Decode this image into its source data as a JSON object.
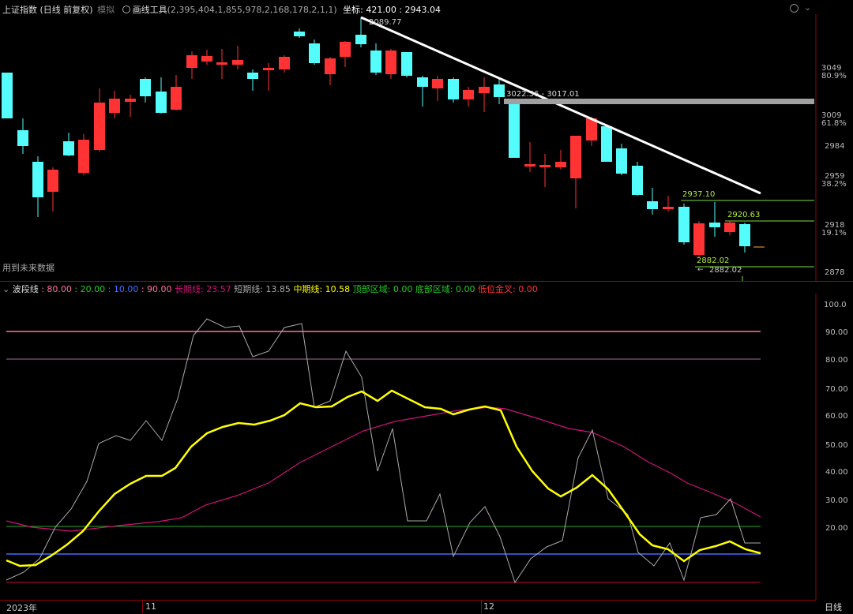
{
  "price_header": {
    "index_name": "上证指数",
    "mode": "(日线 前复权)",
    "sim": "模拟",
    "tool_label": "画线工具",
    "tool_params": "(2,395,404,1,855,978,2,168,178,2,1,1)",
    "coord_label": "坐标:",
    "coord_value": "421.00 : 2943.04"
  },
  "price_axis": {
    "ticks": [
      "3049",
      "80.9%",
      "3009",
      "61.8%",
      "2984",
      "2959",
      "38.2%",
      "2918",
      "19.1%",
      "2878"
    ]
  },
  "price_annotations": {
    "high": "2089.77",
    "zone": "3022.36 - 3017.01",
    "level1": "2937.10",
    "level2": "2920.63",
    "level3": "2882.02",
    "level3_arrow": "2882.02"
  },
  "future_note": "用到未来数据",
  "indicator_header": {
    "name": "波段线",
    "v80": ": 80.00",
    "v20": ": 20.00",
    "v10": ": 10.00",
    "v90": ": 90.00",
    "long_label": "长期线",
    "long_val": ": 23.57",
    "short_label": "短期线",
    "short_val": ": 13.85",
    "mid_label": "中期线",
    "mid_val": ": 10.58",
    "top_label": "顶部区域",
    "top_val": ": 0.00",
    "bottom_label": "底部区域",
    "bottom_val": ": 0.00",
    "cross_label": "低位金叉",
    "cross_val": ": 0.00"
  },
  "indicator_axis": {
    "ticks": [
      "100.0",
      "90.00",
      "80.00",
      "70.00",
      "60.00",
      "50.00",
      "40.00",
      "30.00",
      "20.00"
    ]
  },
  "date_axis": {
    "start": "2023年",
    "m11": "11",
    "m12": "12"
  },
  "period_label": "日线",
  "colors": {
    "up": "#ff3333",
    "down": "#54fcfc",
    "mid": "#ffff00",
    "long": "#d0127a",
    "short": "#aaaaaa"
  }
}
